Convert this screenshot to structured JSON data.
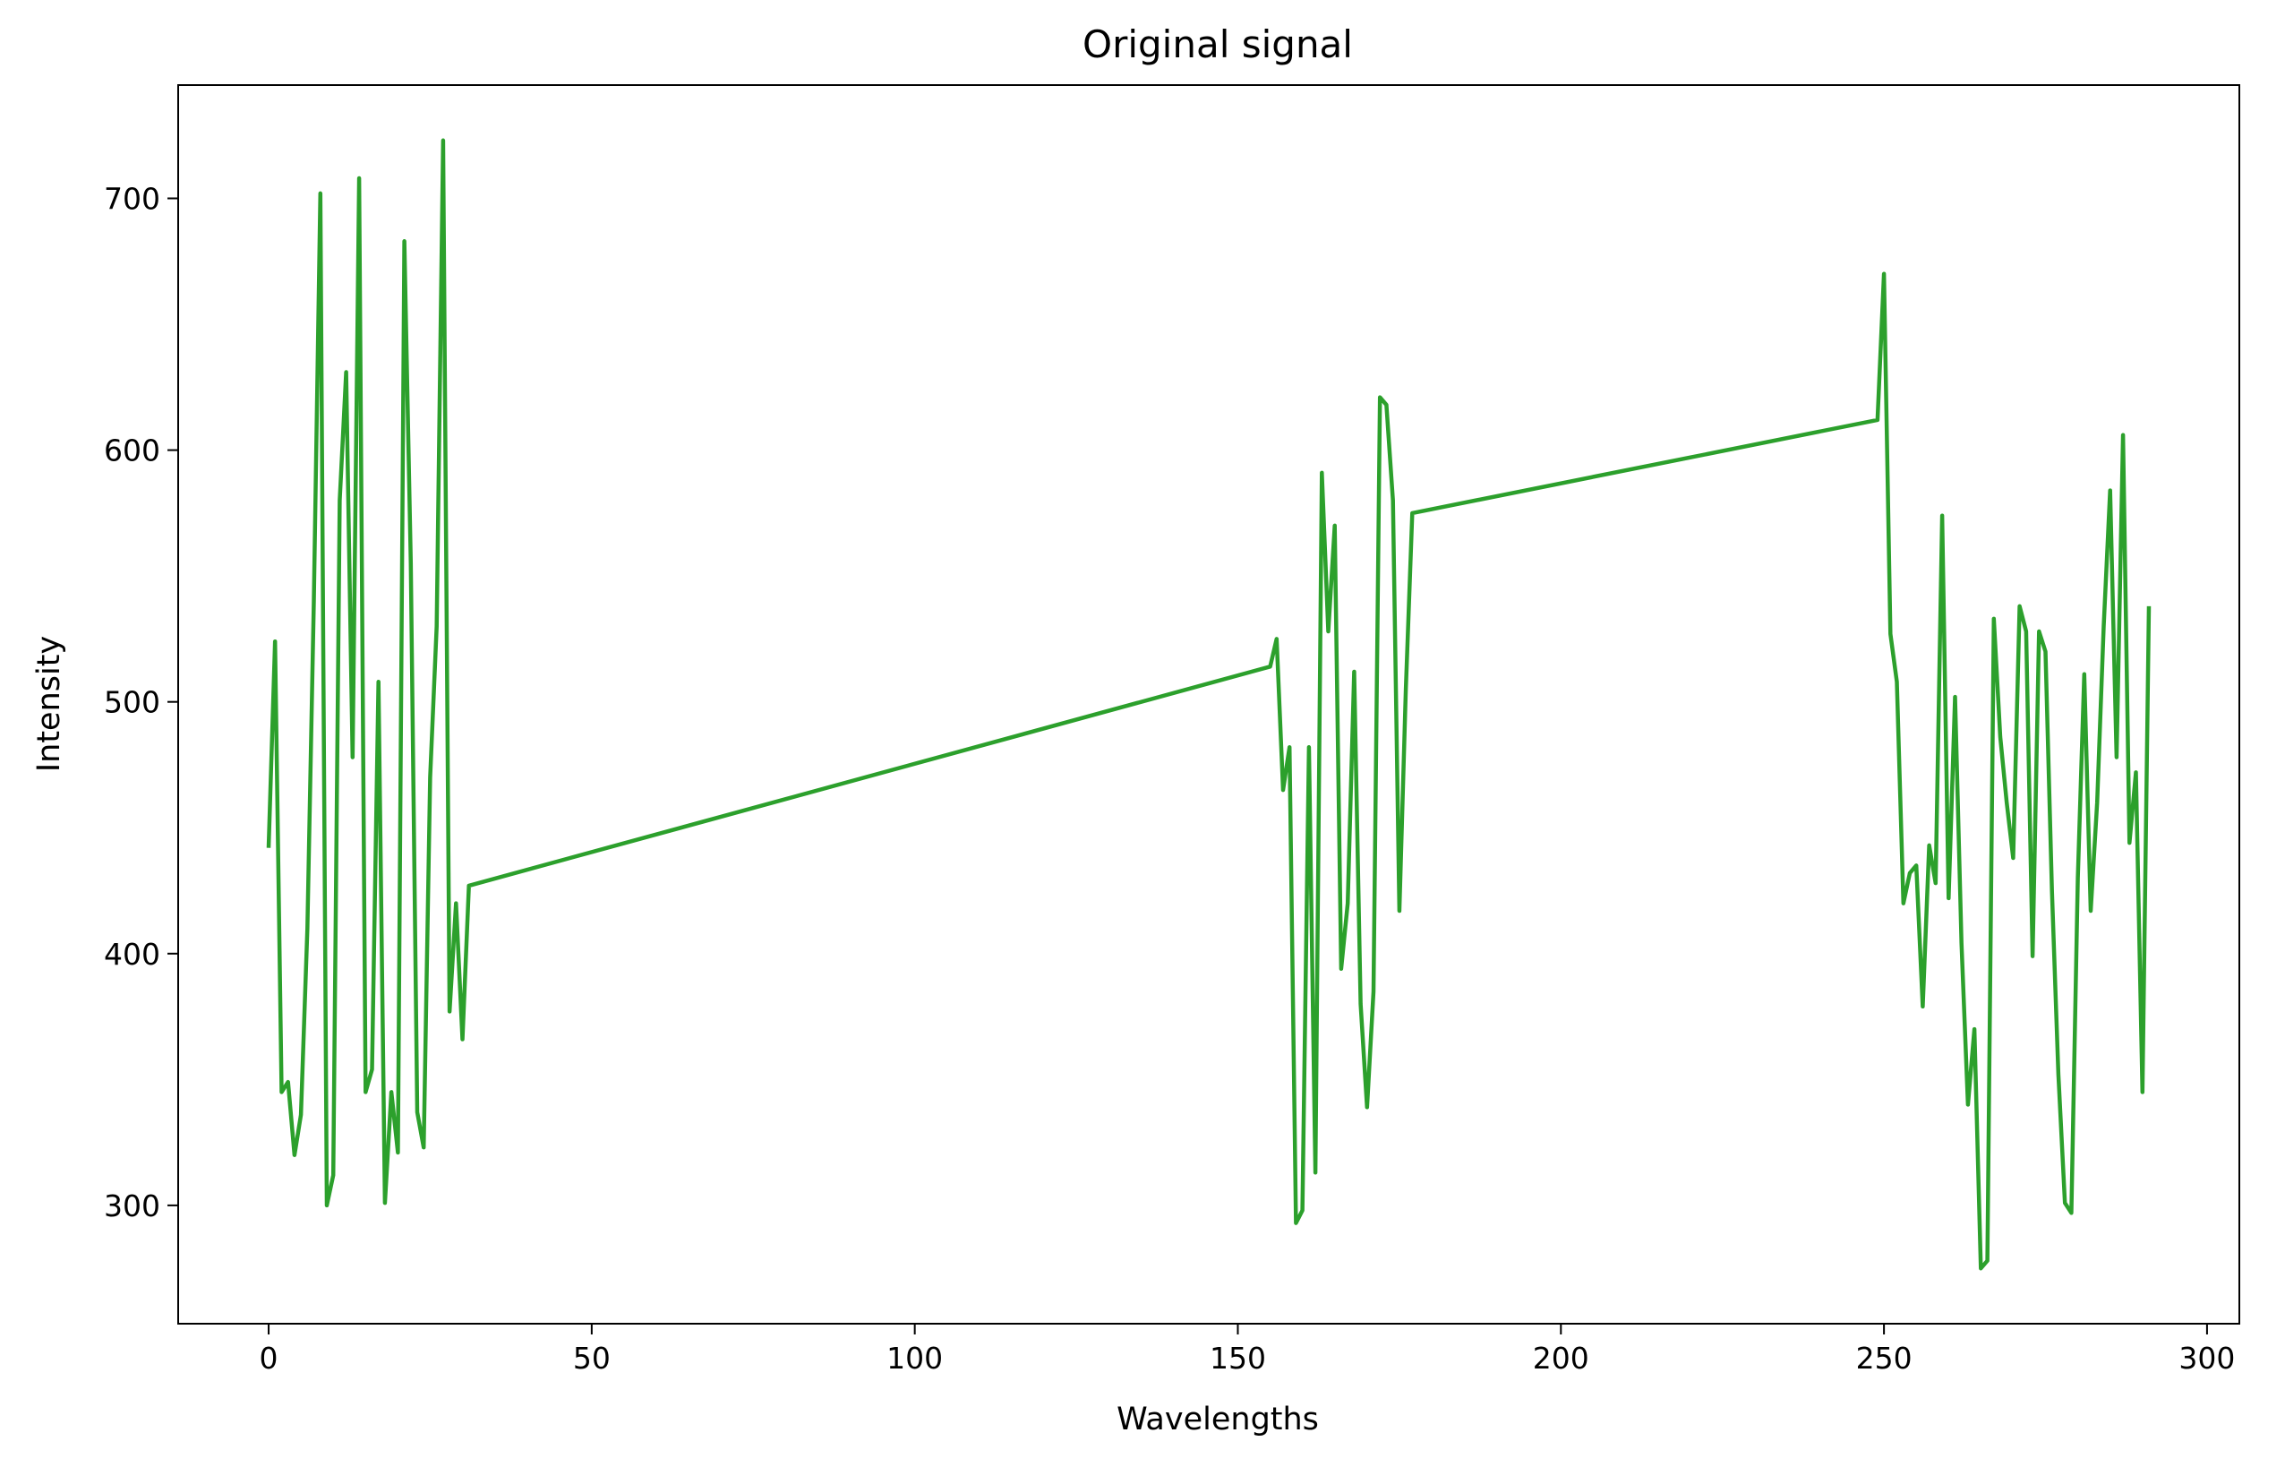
{
  "chart_data": {
    "type": "line",
    "title": "Original signal",
    "xlabel": "Wavelengths",
    "ylabel": "Intensity",
    "xlim": [
      -14,
      305
    ],
    "ylim": [
      253,
      745
    ],
    "xticks": [
      0,
      50,
      100,
      150,
      200,
      250,
      300
    ],
    "yticks": [
      300,
      400,
      500,
      600,
      700
    ],
    "grid": false,
    "line_color": "#2ca02c",
    "series": [
      {
        "x": [
          0,
          1,
          2,
          3,
          4,
          5,
          6,
          7,
          8,
          9,
          10,
          11,
          12,
          13,
          14,
          15,
          16,
          17,
          18,
          19,
          20,
          21,
          22,
          23,
          24,
          25,
          26,
          27,
          28,
          29,
          30,
          31,
          155,
          156,
          157,
          158,
          159,
          160,
          161,
          162,
          163,
          164,
          165,
          166,
          167,
          168,
          169,
          170,
          171,
          172,
          173,
          174,
          175,
          176,
          177,
          249,
          250,
          251,
          252,
          253,
          254,
          255,
          256,
          257,
          258,
          259,
          260,
          261,
          262,
          263,
          264,
          265,
          266,
          267,
          268,
          269,
          270,
          271,
          272,
          273,
          274,
          275,
          276,
          277,
          278,
          279,
          280,
          281,
          282,
          283,
          284,
          285,
          286,
          287,
          288,
          289,
          290,
          291
        ],
        "y": [
          442,
          524,
          345,
          349,
          320,
          336,
          410,
          540,
          702,
          300,
          312,
          580,
          631,
          478,
          708,
          345,
          354,
          508,
          301,
          345,
          321,
          683,
          555,
          337,
          323,
          470,
          530,
          723,
          377,
          420,
          366,
          427,
          514,
          525,
          465,
          482,
          293,
          298,
          482,
          313,
          591,
          528,
          570,
          394,
          420,
          512,
          380,
          339,
          385,
          621,
          618,
          580,
          417,
          505,
          575,
          612,
          670,
          527,
          508,
          420,
          432,
          435,
          379,
          443,
          428,
          574,
          422,
          502,
          404,
          340,
          370,
          275,
          278,
          533,
          486,
          460,
          438,
          538,
          528,
          399,
          528,
          520,
          425,
          352,
          301,
          297,
          430,
          511,
          417,
          460,
          530,
          584,
          478,
          606,
          444,
          472,
          345,
          538
        ]
      }
    ]
  }
}
